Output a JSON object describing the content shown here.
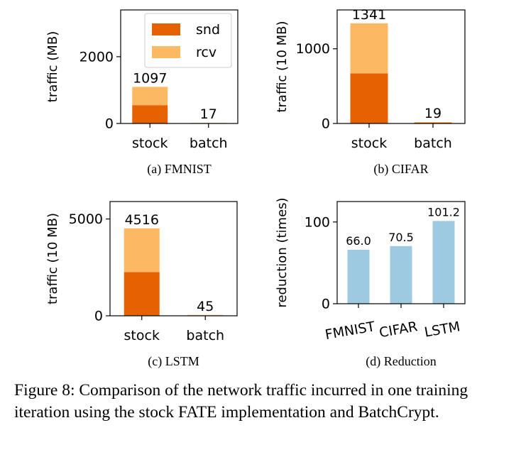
{
  "colors": {
    "snd": "#e66101",
    "rcv": "#fdb863",
    "reduction": "#9ecae1"
  },
  "chart_data": [
    {
      "type": "bar",
      "stacked": true,
      "subtitle": "(a) FMNIST",
      "ylabel": "traffic (MB)",
      "categories": [
        "stock",
        "batch"
      ],
      "series": [
        {
          "name": "snd",
          "values": [
            548.5,
            8.5
          ]
        },
        {
          "name": "rcv",
          "values": [
            548.5,
            8.5
          ]
        }
      ],
      "totals": [
        "1097",
        "17"
      ],
      "ylim": [
        0,
        3400
      ],
      "yticks": [
        0,
        2000
      ],
      "ytick_labels": [
        "0",
        "2000"
      ],
      "legend": "top-right"
    },
    {
      "type": "bar",
      "stacked": true,
      "subtitle": "(b) CIFAR",
      "ylabel": "traffic (10 MB)",
      "categories": [
        "stock",
        "batch"
      ],
      "series": [
        {
          "name": "snd",
          "values": [
            670.5,
            9.5
          ]
        },
        {
          "name": "rcv",
          "values": [
            670.5,
            9.5
          ]
        }
      ],
      "totals": [
        "1341",
        "19"
      ],
      "ylim": [
        0,
        1520
      ],
      "yticks": [
        0,
        1000
      ],
      "ytick_labels": [
        "0",
        "1000"
      ]
    },
    {
      "type": "bar",
      "stacked": true,
      "subtitle": "(c) LSTM",
      "ylabel": "traffic (10 MB)",
      "categories": [
        "stock",
        "batch"
      ],
      "series": [
        {
          "name": "snd",
          "values": [
            2258,
            22.5
          ]
        },
        {
          "name": "rcv",
          "values": [
            2258,
            22.5
          ]
        }
      ],
      "totals": [
        "4516",
        "45"
      ],
      "ylim": [
        0,
        5900
      ],
      "yticks": [
        0,
        5000
      ],
      "ytick_labels": [
        "0",
        "5000"
      ]
    },
    {
      "type": "bar",
      "subtitle": "(d) Reduction",
      "ylabel": "reduction (times)",
      "categories": [
        "FMNIST",
        "CIFAR",
        "LSTM"
      ],
      "values": [
        66.0,
        70.5,
        101.2
      ],
      "value_labels": [
        "66.0",
        "70.5",
        "101.2"
      ],
      "ylim": [
        0,
        125
      ],
      "yticks": [
        0,
        100
      ],
      "ytick_labels": [
        "0",
        "100"
      ],
      "xtick_rotation": 10
    }
  ],
  "caption": "Figure 8: Comparison of the network traffic incurred in one training iteration using the stock FATE implementation and BatchCrypt."
}
